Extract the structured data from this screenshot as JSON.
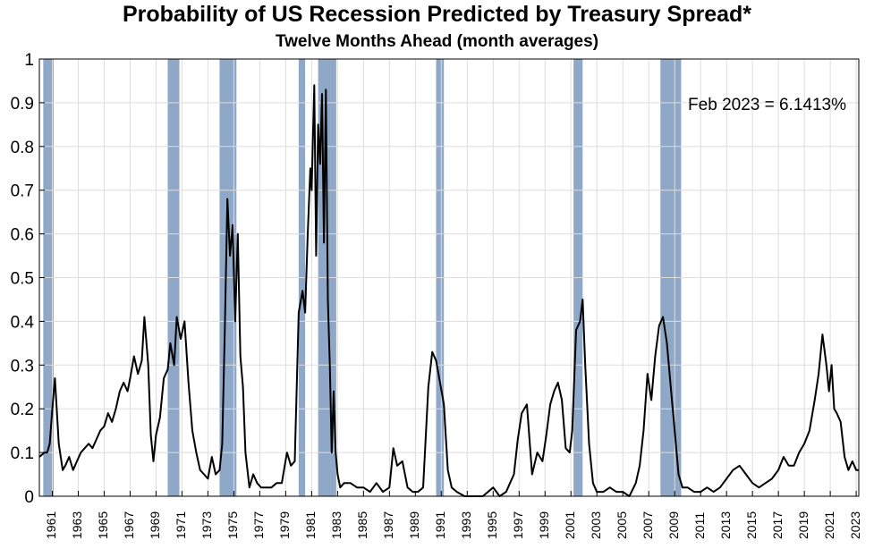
{
  "chart_data": {
    "type": "line",
    "title": "Probability of US Recession Predicted by Treasury Spread*",
    "subtitle": "Twelve Months Ahead (month averages)",
    "annotation": "Feb 2023 = 6.1413%",
    "xlim": [
      1960.0,
      2023.2
    ],
    "ylim": [
      0,
      1
    ],
    "grid": true,
    "y_ticks": [
      "0",
      "0.1",
      "0.2",
      "0.3",
      "0.4",
      "0.5",
      "0.6",
      "0.7",
      "0.8",
      "0.9",
      "1"
    ],
    "x_ticks": [
      "1961",
      "1963",
      "1965",
      "1967",
      "1969",
      "1971",
      "1973",
      "1975",
      "1977",
      "1979",
      "1981",
      "1983",
      "1985",
      "1987",
      "1989",
      "1991",
      "1993",
      "1995",
      "1997",
      "1999",
      "2001",
      "2003",
      "2005",
      "2007",
      "2009",
      "2011",
      "2013",
      "2015",
      "2017",
      "2019",
      "2021",
      "2023"
    ],
    "recession_shading_color": "#8fa8c8",
    "line_color": "#000000",
    "recessions": [
      [
        1960.3,
        1961.1
      ],
      [
        1969.9,
        1970.8
      ],
      [
        1973.9,
        1975.2
      ],
      [
        1980.0,
        1980.5
      ],
      [
        1981.5,
        1982.9
      ],
      [
        1990.6,
        1991.2
      ],
      [
        2001.2,
        2001.9
      ],
      [
        2007.9,
        2009.5
      ]
    ],
    "series": [
      {
        "x": [
          1960.0,
          1960.4,
          1960.6,
          1960.8,
          1961.0,
          1961.2,
          1961.5,
          1961.8,
          1962.0,
          1962.3,
          1962.6,
          1962.9,
          1963.2,
          1963.5,
          1963.8,
          1964.1,
          1964.4,
          1964.7,
          1965.0,
          1965.3,
          1965.6,
          1965.9,
          1966.2,
          1966.5,
          1966.8,
          1967.0,
          1967.3,
          1967.6,
          1967.9,
          1968.1,
          1968.4,
          1968.6,
          1968.8,
          1969.0,
          1969.3,
          1969.6,
          1969.9,
          1970.1,
          1970.4,
          1970.6,
          1970.9,
          1971.2,
          1971.5,
          1971.8,
          1972.1,
          1972.4,
          1972.7,
          1973.0,
          1973.3,
          1973.6,
          1973.9,
          1974.1,
          1974.3,
          1974.5,
          1974.7,
          1974.9,
          1975.1,
          1975.3,
          1975.5,
          1975.7,
          1975.9,
          1976.2,
          1976.5,
          1976.8,
          1977.1,
          1977.5,
          1977.9,
          1978.3,
          1978.7,
          1979.1,
          1979.4,
          1979.7,
          1980.0,
          1980.3,
          1980.5,
          1980.7,
          1980.9,
          1981.0,
          1981.1,
          1981.2,
          1981.35,
          1981.5,
          1981.65,
          1981.8,
          1981.95,
          1982.1,
          1982.25,
          1982.4,
          1982.55,
          1982.7,
          1982.85,
          1983.0,
          1983.2,
          1983.5,
          1984.0,
          1984.5,
          1985.0,
          1985.5,
          1986.0,
          1986.5,
          1987.0,
          1987.3,
          1987.6,
          1988.0,
          1988.4,
          1988.8,
          1989.2,
          1989.6,
          1990.0,
          1990.3,
          1990.6,
          1990.9,
          1991.2,
          1991.5,
          1991.8,
          1992.2,
          1992.8,
          1993.5,
          1994.2,
          1995.0,
          1995.5,
          1996.0,
          1996.3,
          1996.6,
          1996.9,
          1997.2,
          1997.6,
          1998.0,
          1998.4,
          1998.8,
          1999.1,
          1999.4,
          1999.7,
          2000.0,
          2000.3,
          2000.6,
          2000.9,
          2001.1,
          2001.4,
          2001.7,
          2001.9,
          2002.1,
          2002.4,
          2002.7,
          2003.0,
          2003.5,
          2004.0,
          2004.5,
          2005.0,
          2005.5,
          2006.0,
          2006.3,
          2006.6,
          2006.9,
          2007.2,
          2007.5,
          2007.8,
          2008.1,
          2008.4,
          2008.7,
          2009.0,
          2009.3,
          2009.6,
          2010.0,
          2010.5,
          2011.0,
          2011.5,
          2012.0,
          2012.5,
          2013.0,
          2013.5,
          2014.0,
          2014.5,
          2015.0,
          2015.5,
          2016.0,
          2016.5,
          2017.0,
          2017.4,
          2017.8,
          2018.2,
          2018.6,
          2019.0,
          2019.4,
          2019.8,
          2020.1,
          2020.4,
          2020.7,
          2020.9,
          2021.1,
          2021.3,
          2021.5,
          2021.8,
          2022.1,
          2022.4,
          2022.7,
          2023.0,
          2023.2
        ],
        "y": [
          0.09,
          0.1,
          0.1,
          0.12,
          0.2,
          0.27,
          0.12,
          0.06,
          0.07,
          0.09,
          0.06,
          0.08,
          0.1,
          0.11,
          0.12,
          0.11,
          0.13,
          0.15,
          0.16,
          0.19,
          0.17,
          0.2,
          0.24,
          0.26,
          0.24,
          0.27,
          0.32,
          0.28,
          0.31,
          0.41,
          0.3,
          0.14,
          0.08,
          0.14,
          0.18,
          0.27,
          0.29,
          0.35,
          0.3,
          0.41,
          0.36,
          0.4,
          0.26,
          0.15,
          0.1,
          0.06,
          0.05,
          0.04,
          0.09,
          0.05,
          0.06,
          0.12,
          0.38,
          0.68,
          0.55,
          0.62,
          0.4,
          0.6,
          0.32,
          0.25,
          0.1,
          0.02,
          0.05,
          0.03,
          0.02,
          0.02,
          0.02,
          0.03,
          0.03,
          0.1,
          0.07,
          0.08,
          0.42,
          0.47,
          0.42,
          0.6,
          0.75,
          0.7,
          0.82,
          0.94,
          0.55,
          0.85,
          0.76,
          0.92,
          0.58,
          0.93,
          0.45,
          0.3,
          0.1,
          0.24,
          0.1,
          0.05,
          0.02,
          0.03,
          0.03,
          0.02,
          0.02,
          0.01,
          0.03,
          0.01,
          0.02,
          0.11,
          0.07,
          0.08,
          0.02,
          0.01,
          0.01,
          0.02,
          0.25,
          0.33,
          0.31,
          0.26,
          0.21,
          0.06,
          0.02,
          0.01,
          0.0,
          0.0,
          0.0,
          0.02,
          0.0,
          0.01,
          0.03,
          0.05,
          0.13,
          0.19,
          0.21,
          0.05,
          0.1,
          0.08,
          0.14,
          0.21,
          0.24,
          0.26,
          0.22,
          0.11,
          0.1,
          0.15,
          0.38,
          0.4,
          0.45,
          0.3,
          0.12,
          0.03,
          0.01,
          0.01,
          0.02,
          0.01,
          0.01,
          0.0,
          0.03,
          0.07,
          0.15,
          0.28,
          0.22,
          0.32,
          0.39,
          0.41,
          0.35,
          0.25,
          0.15,
          0.05,
          0.02,
          0.02,
          0.01,
          0.01,
          0.02,
          0.01,
          0.02,
          0.04,
          0.06,
          0.07,
          0.05,
          0.03,
          0.02,
          0.03,
          0.04,
          0.06,
          0.09,
          0.07,
          0.07,
          0.1,
          0.12,
          0.15,
          0.22,
          0.28,
          0.37,
          0.3,
          0.24,
          0.3,
          0.2,
          0.19,
          0.17,
          0.09,
          0.06,
          0.08,
          0.06,
          0.06
        ]
      }
    ]
  }
}
